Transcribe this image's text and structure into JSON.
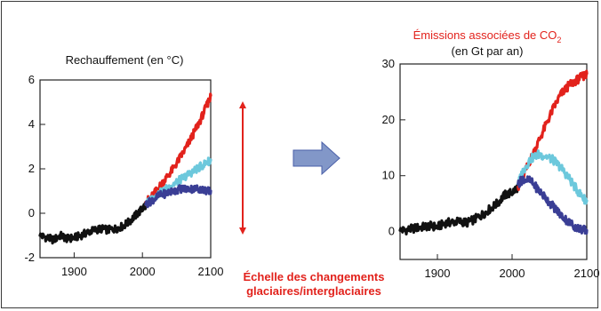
{
  "chart_data": [
    {
      "type": "line",
      "title": "Rechauffement (en °C)",
      "xlabel": "",
      "ylabel": "",
      "xlim": [
        1850,
        2100
      ],
      "ylim": [
        -2,
        6
      ],
      "x_ticks": [
        1900,
        2000,
        2100
      ],
      "y_ticks": [
        -2,
        0,
        2,
        4,
        6
      ],
      "series": [
        {
          "color": "#111111",
          "x": [
            1850,
            1860,
            1870,
            1880,
            1890,
            1900,
            1910,
            1920,
            1930,
            1940,
            1950,
            1960,
            1970,
            1980,
            1990,
            2000,
            2005
          ],
          "values": [
            -1.0,
            -1.1,
            -1.2,
            -1.0,
            -1.15,
            -1.1,
            -1.0,
            -0.85,
            -0.75,
            -0.7,
            -0.75,
            -0.7,
            -0.6,
            -0.4,
            -0.1,
            0.2,
            0.4
          ]
        },
        {
          "color": "#e2221c",
          "x": [
            2005,
            2015,
            2025,
            2035,
            2045,
            2055,
            2065,
            2075,
            2085,
            2095,
            2100
          ],
          "values": [
            0.5,
            0.8,
            1.2,
            1.6,
            2.0,
            2.5,
            3.0,
            3.6,
            4.2,
            4.9,
            5.3
          ]
        },
        {
          "color": "#6cc8dc",
          "x": [
            2005,
            2015,
            2025,
            2035,
            2045,
            2055,
            2065,
            2075,
            2085,
            2095,
            2100
          ],
          "values": [
            0.4,
            0.7,
            0.9,
            1.1,
            1.3,
            1.5,
            1.7,
            1.9,
            2.1,
            2.3,
            2.4
          ]
        },
        {
          "color": "#3a3e95",
          "x": [
            2005,
            2015,
            2025,
            2035,
            2045,
            2055,
            2065,
            2075,
            2085,
            2095,
            2100
          ],
          "values": [
            0.4,
            0.6,
            0.8,
            0.9,
            1.0,
            1.1,
            1.1,
            1.1,
            1.1,
            1.0,
            1.0
          ]
        }
      ]
    },
    {
      "type": "line",
      "title": "Émissions associées de CO",
      "title_subscript": "2",
      "subtitle": "(en Gt par an)",
      "xlabel": "",
      "ylabel": "",
      "xlim": [
        1850,
        2100
      ],
      "ylim": [
        -5,
        30
      ],
      "x_ticks": [
        1900,
        2000,
        2100
      ],
      "y_ticks": [
        0,
        10,
        20,
        30
      ],
      "series": [
        {
          "color": "#111111",
          "x": [
            1850,
            1860,
            1870,
            1880,
            1890,
            1900,
            1910,
            1920,
            1930,
            1940,
            1950,
            1960,
            1970,
            1980,
            1990,
            2000,
            2008
          ],
          "values": [
            0.2,
            0.3,
            0.6,
            0.8,
            1.0,
            0.8,
            1.5,
            1.7,
            1.8,
            1.6,
            2.2,
            3.0,
            4.0,
            5.0,
            6.5,
            7.0,
            8.0
          ]
        },
        {
          "color": "#e2221c",
          "x": [
            2008,
            2015,
            2025,
            2035,
            2045,
            2055,
            2065,
            2075,
            2085,
            2095,
            2100
          ],
          "values": [
            8.0,
            10.0,
            13.0,
            16.0,
            19.0,
            22.0,
            24.5,
            26.0,
            27.0,
            27.8,
            28.3
          ]
        },
        {
          "color": "#6cc8dc",
          "x": [
            2008,
            2015,
            2025,
            2035,
            2045,
            2055,
            2065,
            2075,
            2085,
            2095,
            2100
          ],
          "values": [
            8.5,
            11.0,
            13.0,
            13.8,
            13.5,
            12.8,
            11.5,
            9.8,
            7.8,
            6.0,
            5.5
          ]
        },
        {
          "color": "#3a3e95",
          "x": [
            2008,
            2015,
            2025,
            2035,
            2045,
            2055,
            2065,
            2075,
            2085,
            2095,
            2100
          ],
          "values": [
            8.5,
            9.5,
            9.0,
            7.5,
            6.0,
            4.5,
            3.0,
            1.8,
            0.8,
            0.3,
            0.2
          ]
        }
      ]
    }
  ],
  "arrow_colors": {
    "range_arrow": "#e2221c",
    "transition_arrow_fill": "#8297c8",
    "transition_arrow_stroke": "#4a5fa8"
  },
  "scale_label": {
    "line1": "Échelle des changements",
    "line2": "glaciaires/interglaciaires"
  }
}
